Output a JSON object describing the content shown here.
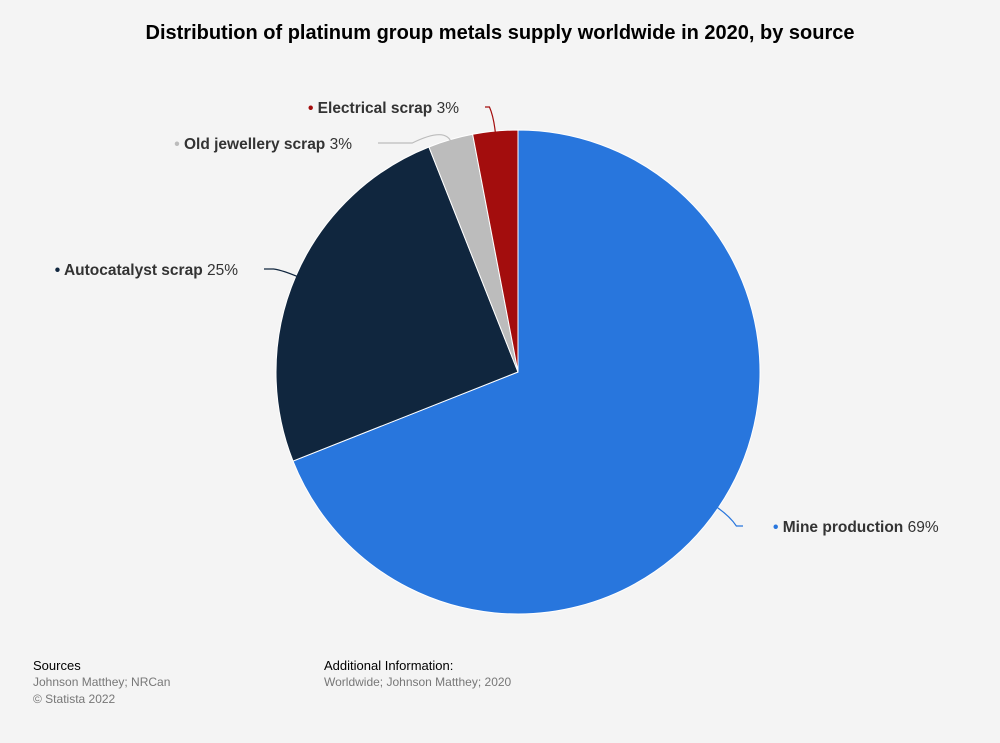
{
  "chart_data": {
    "type": "pie",
    "title": "Distribution of platinum group metals supply worldwide in 2020, by source",
    "unit": "%",
    "slices": [
      {
        "name": "Mine production",
        "value": 69,
        "color": "#2876dd"
      },
      {
        "name": "Autocatalyst scrap",
        "value": 25,
        "color": "#10263e"
      },
      {
        "name": "Old jewellery scrap",
        "value": 3,
        "color": "#bcbcbc"
      },
      {
        "name": "Electrical scrap",
        "value": 3,
        "color": "#a30d0d"
      }
    ]
  },
  "footer": {
    "sources_heading": "Sources",
    "sources_lines": [
      "Johnson Matthey; NRCan",
      "© Statista 2022"
    ],
    "additional_heading": "Additional Information:",
    "additional_lines": [
      "Worldwide; Johnson Matthey; 2020"
    ]
  }
}
